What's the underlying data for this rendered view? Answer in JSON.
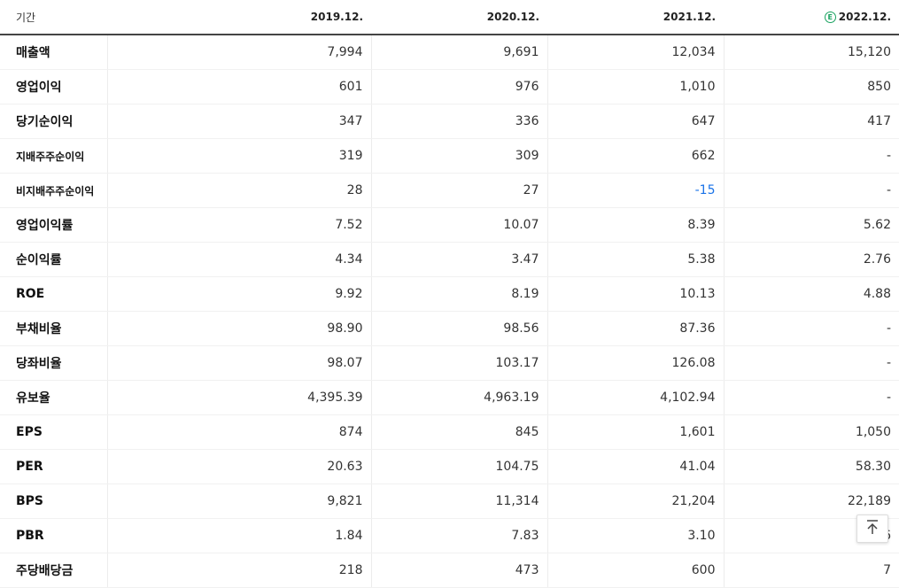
{
  "header": {
    "period_label": "기간",
    "estimate_icon": "E",
    "periods": [
      "2019.12.",
      "2020.12.",
      "2021.12.",
      "2022.12."
    ]
  },
  "rows": [
    {
      "label": "매출액",
      "values": [
        "7,994",
        "9,691",
        "12,034",
        "15,120"
      ]
    },
    {
      "label": "영업이익",
      "values": [
        "601",
        "976",
        "1,010",
        "850"
      ]
    },
    {
      "label": "당기순이익",
      "values": [
        "347",
        "336",
        "647",
        "417"
      ]
    },
    {
      "label": "지배주주순이익",
      "values": [
        "319",
        "309",
        "662",
        "-"
      ]
    },
    {
      "label": "비지배주주순이익",
      "values": [
        "28",
        "27",
        "-15",
        "-"
      ]
    },
    {
      "label": "영업이익률",
      "values": [
        "7.52",
        "10.07",
        "8.39",
        "5.62"
      ]
    },
    {
      "label": "순이익률",
      "values": [
        "4.34",
        "3.47",
        "5.38",
        "2.76"
      ]
    },
    {
      "label": "ROE",
      "values": [
        "9.92",
        "8.19",
        "10.13",
        "4.88"
      ]
    },
    {
      "label": "부채비율",
      "values": [
        "98.90",
        "98.56",
        "87.36",
        "-"
      ]
    },
    {
      "label": "당좌비율",
      "values": [
        "98.07",
        "103.17",
        "126.08",
        "-"
      ]
    },
    {
      "label": "유보율",
      "values": [
        "4,395.39",
        "4,963.19",
        "4,102.94",
        "-"
      ]
    },
    {
      "label": "EPS",
      "values": [
        "874",
        "845",
        "1,601",
        "1,050"
      ]
    },
    {
      "label": "PER",
      "values": [
        "20.63",
        "104.75",
        "41.04",
        "58.30"
      ]
    },
    {
      "label": "BPS",
      "values": [
        "9,821",
        "11,314",
        "21,204",
        "22,189"
      ]
    },
    {
      "label": "PBR",
      "values": [
        "1.84",
        "7.83",
        "3.10",
        "2.76"
      ]
    },
    {
      "label": "주당배당금",
      "values": [
        "218",
        "473",
        "600",
        "7"
      ]
    }
  ],
  "colors": {
    "negative": "#1a73e8",
    "estimate": "#1aa260"
  },
  "scroll_top_icon": "arrow-up-to-top-icon"
}
